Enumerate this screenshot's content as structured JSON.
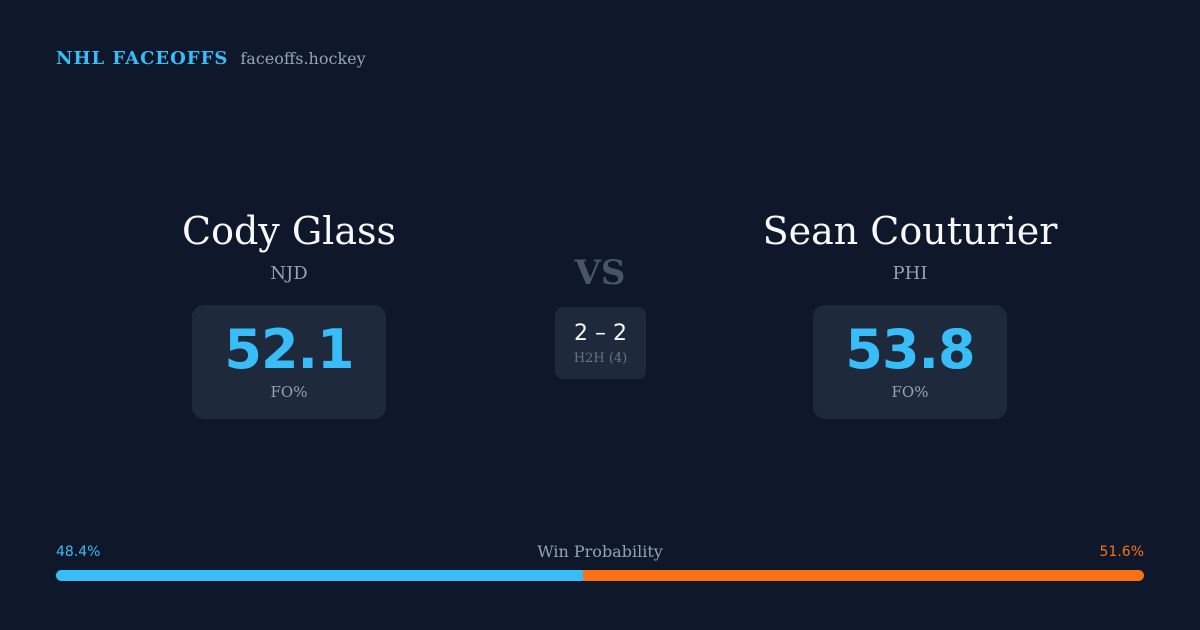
{
  "brand": {
    "name": "NHL FACEOFFS",
    "domain": "faceoffs.hockey"
  },
  "players": {
    "left": {
      "name": "Cody Glass",
      "team": "NJD",
      "fo_pct": "52.1",
      "fo_label": "FO%"
    },
    "right": {
      "name": "Sean Couturier",
      "team": "PHI",
      "fo_pct": "53.8",
      "fo_label": "FO%"
    }
  },
  "vs_label": "VS",
  "head_to_head": {
    "record": "2 – 2",
    "label": "H2H (4)"
  },
  "win_probability": {
    "title": "Win Probability",
    "left_label": "48.4%",
    "right_label": "51.6%",
    "left_value": 48.4,
    "right_value": 51.6
  },
  "colors": {
    "background": "#0f172a",
    "card": "#1e293b",
    "accent_left": "#38bdf8",
    "accent_right": "#f97316",
    "muted_text": "#94a3b8"
  }
}
